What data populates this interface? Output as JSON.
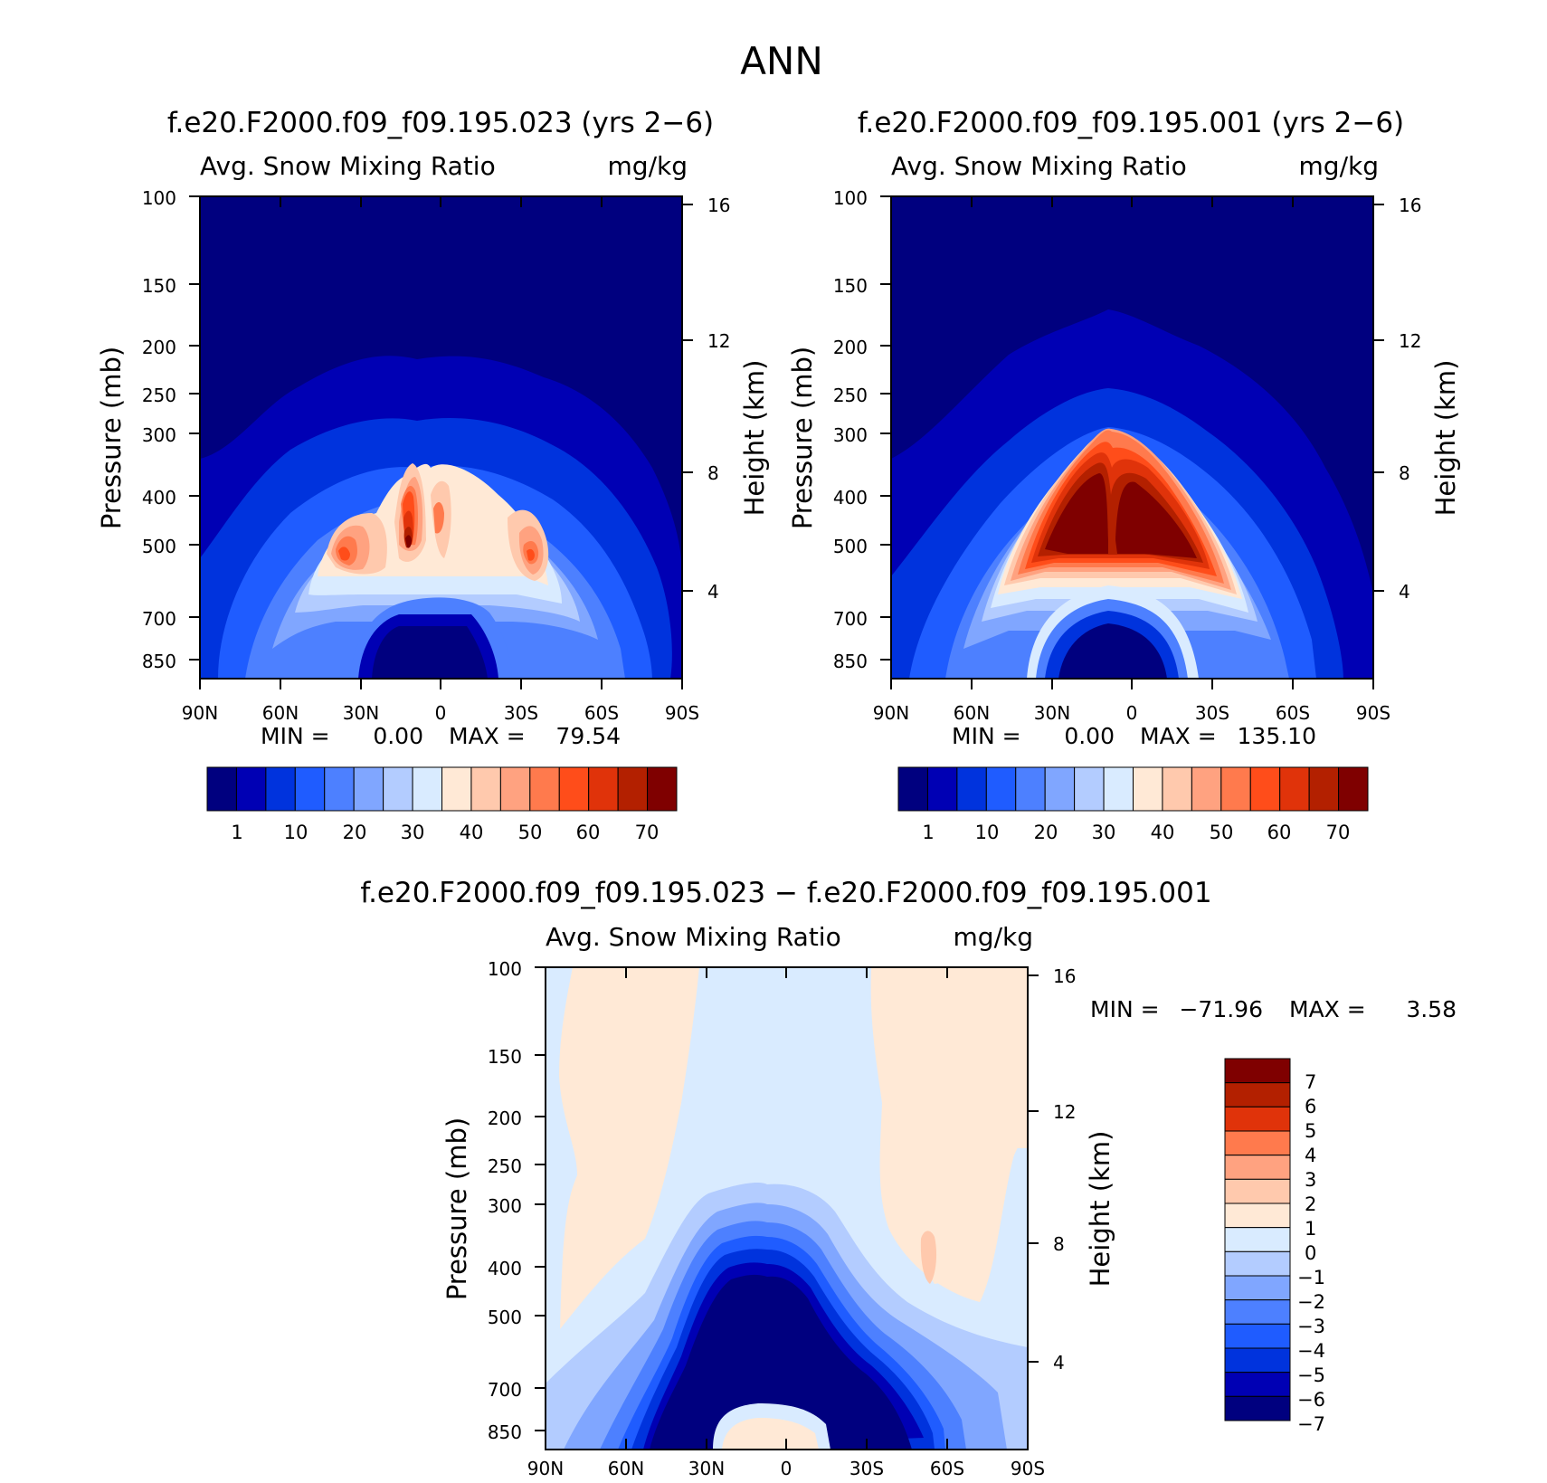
{
  "page_title": "ANN",
  "chart_data": [
    {
      "type": "heatmap",
      "title": "f.e20.F2000.f09_f09.195.023 (yrs 2-6)",
      "subtitle": "Avg. Snow Mixing Ratio",
      "units": "mg/kg",
      "xlabel": "",
      "ylabel": "Pressure (mb)",
      "y2label": "Height (km)",
      "x_ticks": [
        "90N",
        "60N",
        "30N",
        "0",
        "30S",
        "60S",
        "90S"
      ],
      "y_ticks": [
        100,
        150,
        200,
        250,
        300,
        400,
        500,
        700,
        850
      ],
      "y2_ticks": [
        16,
        12,
        8,
        4
      ],
      "y_scale": "log",
      "ylim": [
        100,
        1000
      ],
      "min_label": "MIN =",
      "min_value": "0.00",
      "max_label": "MAX =",
      "max_value": "79.54",
      "colorbar_labels": [
        "1",
        "10",
        "20",
        "30",
        "40",
        "50",
        "60",
        "70"
      ],
      "colors": [
        "#00007f",
        "#0000b4",
        "#0033dd",
        "#1f5cff",
        "#4d80ff",
        "#80a6ff",
        "#b3ccff",
        "#d9ebff",
        "#ffe9d6",
        "#ffc9ad",
        "#ffa280",
        "#ff7a4d",
        "#ff4d1a",
        "#e0330a",
        "#b32000",
        "#7f0000"
      ],
      "annotation": "snow mixing ratio peaks near 30N-30S between 400-700 mb, max ~79.54 mg/kg"
    },
    {
      "type": "heatmap",
      "title": "f.e20.F2000.f09_f09.195.001 (yrs 2-6)",
      "subtitle": "Avg. Snow Mixing Ratio",
      "units": "mg/kg",
      "xlabel": "",
      "ylabel": "Pressure (mb)",
      "y2label": "Height (km)",
      "x_ticks": [
        "90N",
        "60N",
        "30N",
        "0",
        "30S",
        "60S",
        "90S"
      ],
      "y_ticks": [
        100,
        150,
        200,
        250,
        300,
        400,
        500,
        700,
        850
      ],
      "y2_ticks": [
        16,
        12,
        8,
        4
      ],
      "y_scale": "log",
      "ylim": [
        100,
        1000
      ],
      "min_label": "MIN =",
      "min_value": "0.00",
      "max_label": "MAX =",
      "max_value": "135.10",
      "colorbar_labels": [
        "1",
        "10",
        "20",
        "30",
        "40",
        "50",
        "60",
        "70"
      ],
      "colors": [
        "#00007f",
        "#0000b4",
        "#0033dd",
        "#1f5cff",
        "#4d80ff",
        "#80a6ff",
        "#b3ccff",
        "#d9ebff",
        "#ffe9d6",
        "#ffc9ad",
        "#ffa280",
        "#ff7a4d",
        "#ff4d1a",
        "#e0330a",
        "#b32000",
        "#7f0000"
      ]
    },
    {
      "type": "heatmap",
      "title": "f.e20.F2000.f09_f09.195.023 - f.e20.F2000.f09_f09.195.001",
      "subtitle": "Avg. Snow Mixing Ratio",
      "units": "mg/kg",
      "xlabel": "",
      "ylabel": "Pressure (mb)",
      "y2label": "Height (km)",
      "x_ticks": [
        "90N",
        "60N",
        "30N",
        "0",
        "30S",
        "60S",
        "90S"
      ],
      "y_ticks": [
        100,
        150,
        200,
        250,
        300,
        400,
        500,
        700,
        850
      ],
      "y2_ticks": [
        16,
        12,
        8,
        4
      ],
      "y_scale": "log",
      "ylim": [
        100,
        1000
      ],
      "min_label": "MIN =",
      "min_value": "-71.96",
      "max_label": "MAX =",
      "max_value": "3.58",
      "colorbar_labels": [
        "7",
        "6",
        "5",
        "4",
        "3",
        "2",
        "1",
        "0",
        "-1",
        "-2",
        "-3",
        "-4",
        "-5",
        "-6",
        "-7"
      ],
      "colors": [
        "#7f0000",
        "#b32000",
        "#e0330a",
        "#ff7a4d",
        "#ffa280",
        "#ffc9ad",
        "#ffe9d6",
        "#d9ebff",
        "#b3ccff",
        "#80a6ff",
        "#4d80ff",
        "#1f5cff",
        "#0033dd",
        "#0000b4",
        "#00007f"
      ]
    }
  ]
}
